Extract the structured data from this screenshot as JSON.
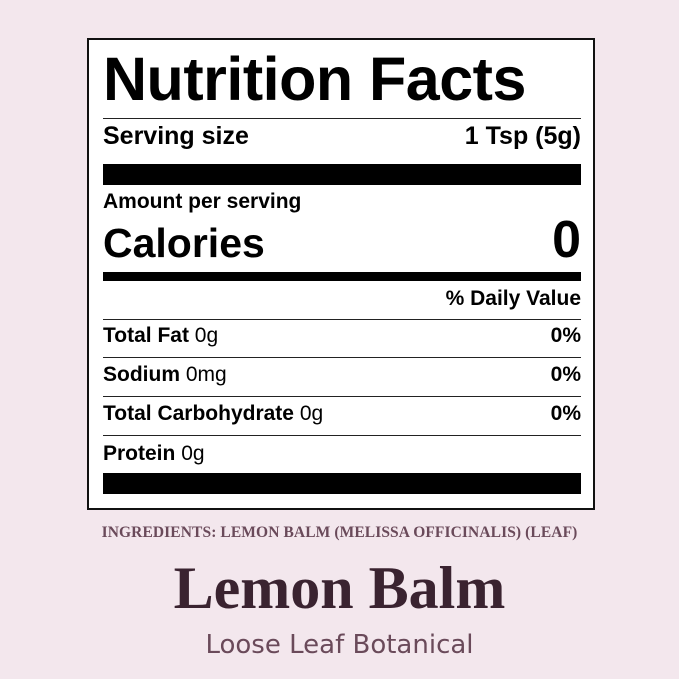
{
  "label": {
    "title": "Nutrition Facts",
    "serving_size_label": "Serving size",
    "serving_size_value": "1 Tsp (5g)",
    "amount_per_serving": "Amount per serving",
    "calories_label": "Calories",
    "calories_value": "0",
    "daily_value_header": "% Daily Value",
    "nutrients": [
      {
        "name": "Total Fat",
        "amount": "0g",
        "dv": "0%"
      },
      {
        "name": "Sodium",
        "amount": "0mg",
        "dv": "0%"
      },
      {
        "name": "Total Carbohydrate",
        "amount": "0g",
        "dv": "0%"
      },
      {
        "name": "Protein",
        "amount": "0g",
        "dv": ""
      }
    ]
  },
  "ingredients": "INGREDIENTS: LEMON BALM (MELISSA OFFICINALIS) (LEAF)",
  "product_name": "Lemon Balm",
  "product_subtitle": "Loose Leaf Botanical",
  "colors": {
    "background": "#f3e7ed",
    "title": "#3a2330",
    "accent": "#6a4a5a"
  }
}
